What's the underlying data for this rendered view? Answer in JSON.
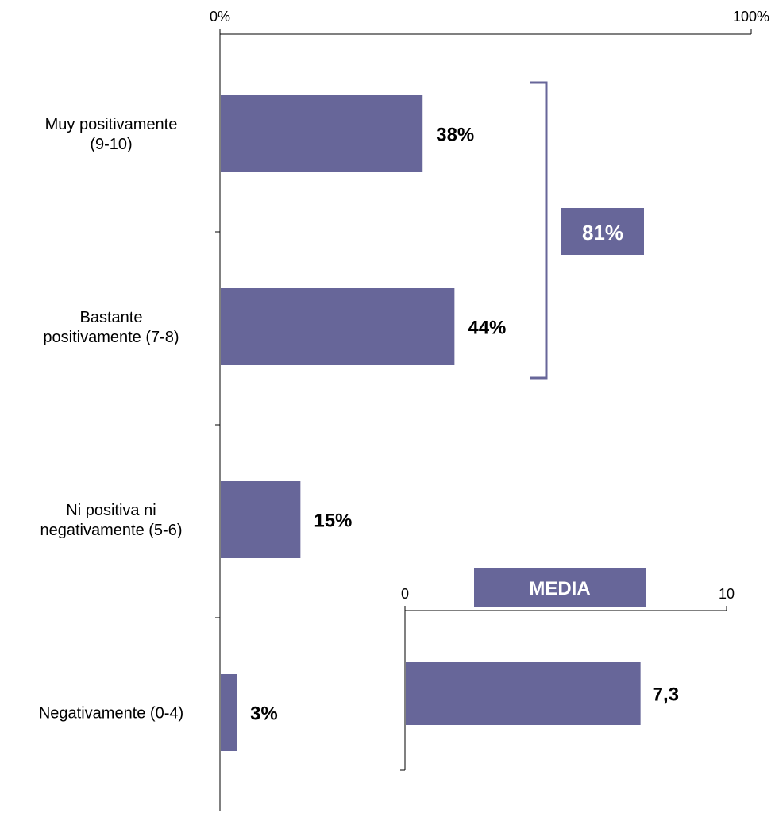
{
  "colors": {
    "bar": "#676699",
    "axis": "#000000",
    "text": "#000000",
    "badge_text": "#ffffff"
  },
  "chart_data": [
    {
      "type": "bar",
      "orientation": "horizontal",
      "axis_position": "top",
      "xlim": [
        0,
        100
      ],
      "tick_labels": [
        "0%",
        "100%"
      ],
      "categories": [
        [
          "Muy positivamente",
          "(9-10)"
        ],
        [
          "Bastante",
          "positivamente (7-8)"
        ],
        [
          "Ni positiva ni",
          "negativamente (5-6)"
        ],
        [
          "Negativamente (0-4)"
        ]
      ],
      "values": [
        38,
        44,
        15,
        3
      ],
      "value_labels": [
        "38%",
        "44%",
        "15%",
        "3%"
      ],
      "grid": false,
      "annotations": [
        {
          "type": "bracket-sum",
          "covers": [
            0,
            1
          ],
          "label": "81%"
        }
      ]
    },
    {
      "type": "bar",
      "orientation": "horizontal",
      "axis_position": "top",
      "title": "MEDIA",
      "xlim": [
        0,
        10
      ],
      "tick_labels": [
        "0",
        "10"
      ],
      "values": [
        7.3
      ],
      "value_labels": [
        "7,3"
      ],
      "grid": false
    }
  ]
}
